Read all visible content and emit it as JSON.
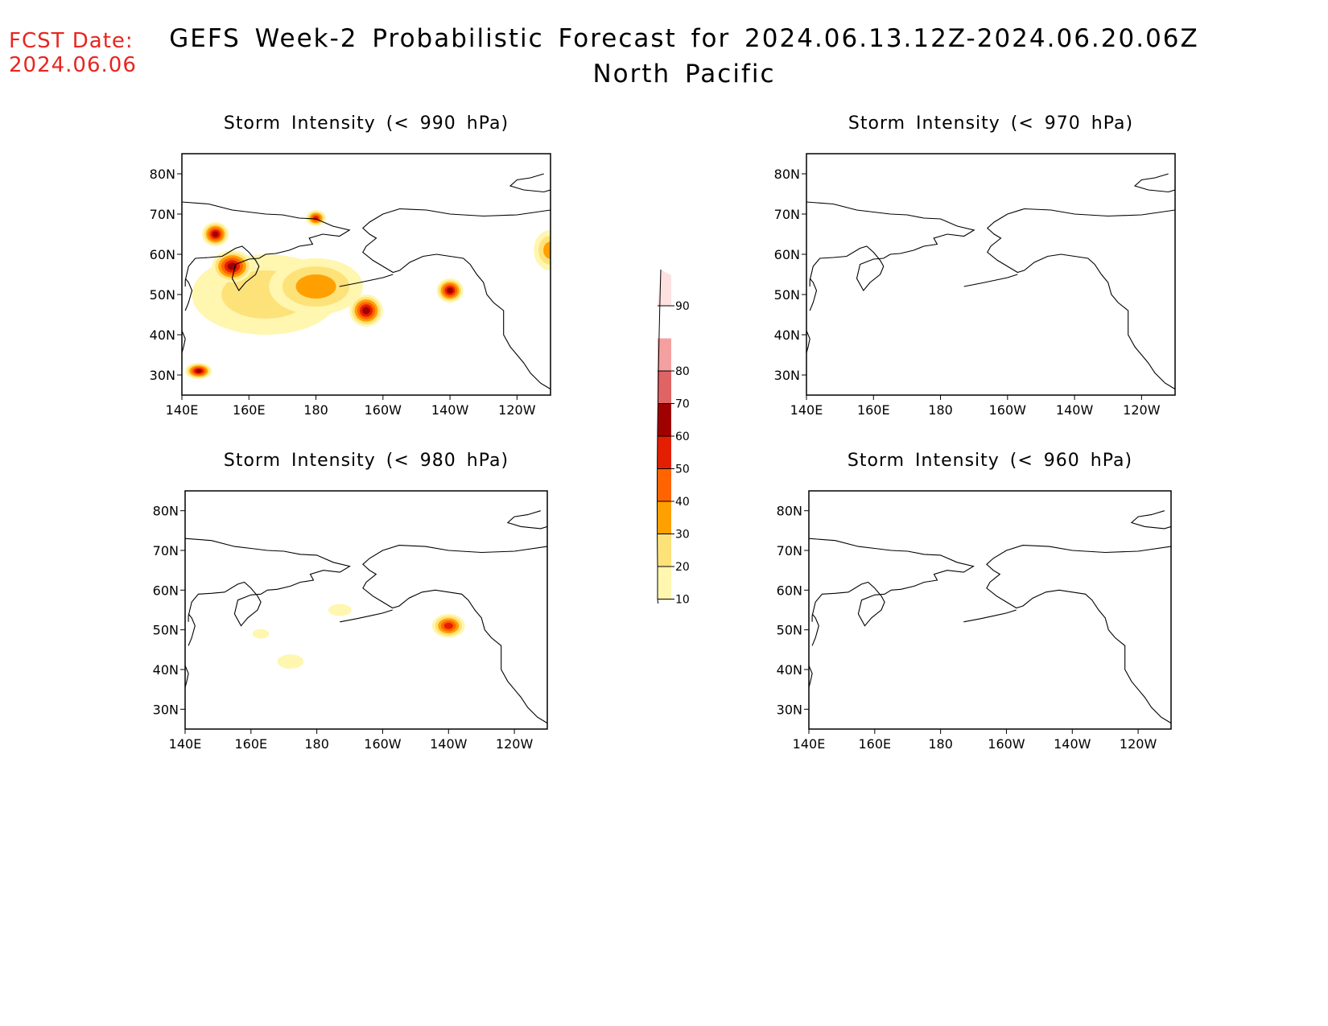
{
  "header": {
    "fcst_label": "FCST Date:",
    "fcst_date": "2024.06.06",
    "title_line1": "GEFS Week-2 Probabilistic Forecast for 2024.06.13.12Z-2024.06.20.06Z",
    "title_line2": "North Pacific"
  },
  "axes": {
    "lat_labels": [
      "80N",
      "70N",
      "60N",
      "50N",
      "40N",
      "30N"
    ],
    "lon_labels": [
      "140E",
      "160E",
      "180",
      "160W",
      "140W",
      "120W"
    ]
  },
  "panels": [
    {
      "id": "p990",
      "title": "Storm Intensity (< 990 hPa)",
      "has_data": true
    },
    {
      "id": "p970",
      "title": "Storm Intensity (< 970 hPa)",
      "has_data": false
    },
    {
      "id": "p980",
      "title": "Storm Intensity (< 980 hPa)",
      "has_data": true
    },
    {
      "id": "p960",
      "title": "Storm Intensity (< 960 hPa)",
      "has_data": false
    }
  ],
  "colorbar": {
    "levels": [
      "10",
      "20",
      "30",
      "40",
      "50",
      "60",
      "70",
      "80",
      "90"
    ],
    "colors": [
      "#fff6b0",
      "#fde27a",
      "#ffa000",
      "#ff6400",
      "#e41e00",
      "#a00000",
      "#e06464",
      "#f4a0a0",
      "#fde0e0"
    ]
  },
  "probability_areas": {
    "p990": [
      {
        "lon": 165,
        "lat": 50,
        "level": 20
      },
      {
        "lon": 180,
        "lat": 52,
        "level": 30
      },
      {
        "lon": 155,
        "lat": 57,
        "level": 60
      },
      {
        "lon": 150,
        "lat": 65,
        "level": 60
      },
      {
        "lon": 180,
        "lat": 69,
        "level": 50
      },
      {
        "lon": 195,
        "lat": 46,
        "level": 60
      },
      {
        "lon": 220,
        "lat": 51,
        "level": 60
      },
      {
        "lon": 250,
        "lat": 61,
        "level": 30
      },
      {
        "lon": 145,
        "lat": 31,
        "level": 60
      }
    ],
    "p980": [
      {
        "lon": 220,
        "lat": 51,
        "level": 50
      },
      {
        "lon": 187,
        "lat": 55,
        "level": 10
      },
      {
        "lon": 163,
        "lat": 49,
        "level": 10
      },
      {
        "lon": 172,
        "lat": 42,
        "level": 10
      }
    ]
  }
}
